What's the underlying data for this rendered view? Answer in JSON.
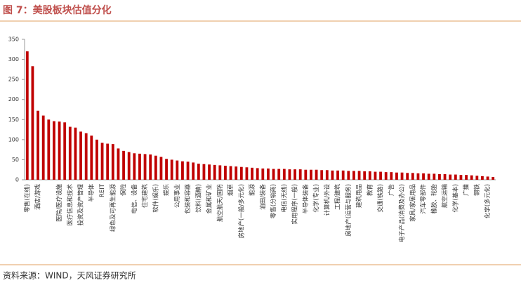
{
  "chart_data": {
    "type": "bar",
    "title": "图 7：美股板块估值分化",
    "source": "资料来源：WIND，天风证券研究所",
    "color": "#c00000",
    "categories": [
      "零售(在线)",
      null,
      "酒店/游戏",
      null,
      null,
      null,
      "医院/医疗设施",
      null,
      "医疗信息和技术",
      null,
      "投资及资产管理",
      null,
      "半导体",
      null,
      "REIT",
      null,
      "绿色及可再生能源",
      null,
      "保险",
      null,
      "电信、设备",
      null,
      "住宅建筑",
      null,
      "软件(娱乐)",
      null,
      "娱乐",
      null,
      "公用事业",
      null,
      "包装和容器",
      null,
      "饮料(酒精)",
      null,
      "金属和矿业",
      null,
      "航空航天/国防",
      null,
      "烟草",
      null,
      "房地产(一般/多元化)",
      null,
      "能源",
      null,
      "油田/装备",
      null,
      "零售(分销商)",
      null,
      "电信(无线)",
      null,
      "实用程序(一般)",
      null,
      "半导体装备",
      null,
      "化学(专业)",
      null,
      "计算机/外设",
      null,
      "工程/建筑",
      null,
      "房地产(运营与服务)",
      null,
      "建筑用品",
      null,
      "教育",
      null,
      "交通(铁路)",
      null,
      "广告",
      null,
      "电子产品(消费及办公)",
      null,
      "家具/家居用品",
      null,
      "汽车零部件",
      null,
      "橡胶、轮胎",
      null,
      "航空运输",
      null,
      "化学(基本)",
      null,
      "广播",
      null,
      "钢铁",
      null,
      "化学(多元化)",
      null
    ],
    "values": [
      320,
      283,
      172,
      160,
      150,
      146,
      145,
      143,
      132,
      130,
      120,
      116,
      110,
      100,
      92,
      90,
      89,
      78,
      72,
      69,
      66,
      65,
      64,
      63,
      60,
      57,
      52,
      50,
      48,
      46,
      45,
      43,
      40,
      39,
      38,
      37,
      36,
      35,
      34,
      33,
      32,
      31,
      30,
      29,
      28,
      28,
      27,
      27,
      27,
      26,
      26,
      26,
      25,
      25,
      25,
      24,
      24,
      23,
      23,
      23,
      22,
      22,
      22,
      21,
      21,
      20,
      20,
      19,
      19,
      18,
      18,
      17,
      17,
      16,
      16,
      15,
      15,
      14,
      14,
      13,
      13,
      12,
      12,
      11,
      10,
      9,
      8,
      7
    ],
    "ylim": [
      0,
      350
    ],
    "yticks": [
      0,
      50,
      100,
      150,
      200,
      250,
      300,
      350
    ]
  }
}
